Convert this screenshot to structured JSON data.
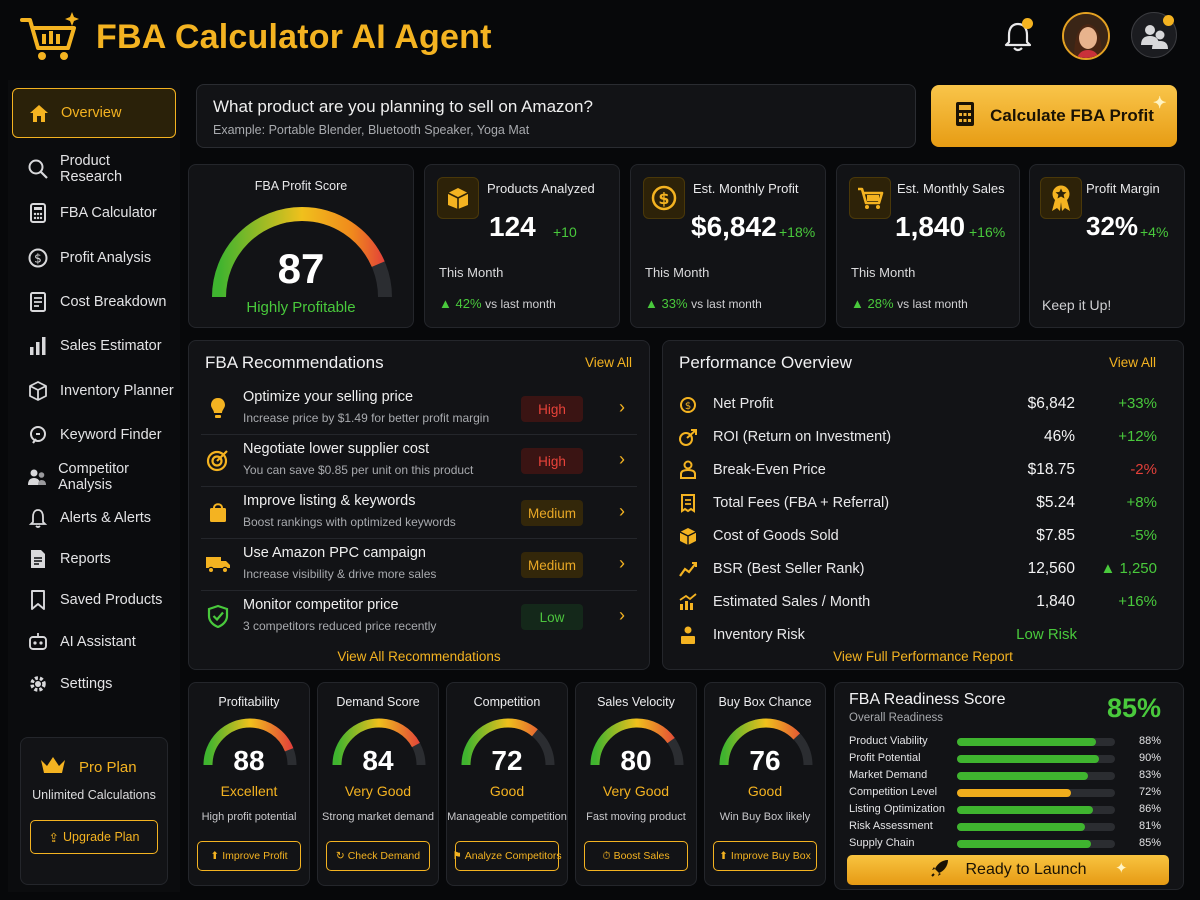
{
  "app": {
    "title": "FBA Calculator AI Agent"
  },
  "sidebar": {
    "items": [
      {
        "label": "Overview",
        "icon": "home-icon",
        "active": true
      },
      {
        "label": "Product Research",
        "icon": "search-icon"
      },
      {
        "label": "FBA Calculator",
        "icon": "calculator-icon"
      },
      {
        "label": "Profit Analysis",
        "icon": "dollar-circle-icon"
      },
      {
        "label": "Cost Breakdown",
        "icon": "document-list-icon"
      },
      {
        "label": "Sales Estimator",
        "icon": "bar-chart-icon"
      },
      {
        "label": "Inventory Planner",
        "icon": "box-icon"
      },
      {
        "label": "Keyword Finder",
        "icon": "magnifier-icon"
      },
      {
        "label": "Competitor Analysis",
        "icon": "users-icon"
      },
      {
        "label": "Alerts & Alerts",
        "icon": "bell-icon"
      },
      {
        "label": "Reports",
        "icon": "report-icon"
      },
      {
        "label": "Saved Products",
        "icon": "bookmark-icon"
      },
      {
        "label": "AI Assistant",
        "icon": "robot-icon"
      },
      {
        "label": "Settings",
        "icon": "gear-icon"
      }
    ],
    "plan": {
      "name": "Pro Plan",
      "desc": "Unlimited Calculations",
      "button": "Upgrade Plan"
    }
  },
  "search": {
    "question": "What product are you planning to sell on Amazon?",
    "example": "Example: Portable Blender, Bluetooth Speaker, Yoga Mat"
  },
  "cta": {
    "label": "Calculate FBA Profit"
  },
  "profit_score": {
    "title": "FBA Profit Score",
    "value": "87",
    "score": 87,
    "max": 100,
    "label": "Highly Profitable"
  },
  "stats": [
    {
      "title": "Products Analyzed",
      "value": "124",
      "delta": "+10",
      "sub": "This Month",
      "trend": "42%",
      "trend_text": "vs last month"
    },
    {
      "title": "Est. Monthly Profit",
      "value": "$6,842",
      "delta": "+18%",
      "sub": "This Month",
      "trend": "33%",
      "trend_text": "vs last month"
    },
    {
      "title": "Est. Monthly Sales",
      "value": "1,840",
      "delta": "+16%",
      "sub": "This Month",
      "trend": "28%",
      "trend_text": "vs last month"
    },
    {
      "title": "Profit Margin",
      "value": "32%",
      "delta": "+4%",
      "foot": "Keep it Up!"
    }
  ],
  "recommendations": {
    "title": "FBA Recommendations",
    "view_all": "View All",
    "footer": "View All Recommendations",
    "items": [
      {
        "title": "Optimize your selling price",
        "sub": "Increase price by $1.49 for better profit margin",
        "priority": "High"
      },
      {
        "title": "Negotiate lower supplier cost",
        "sub": "You can save $0.85 per unit on this product",
        "priority": "High"
      },
      {
        "title": "Improve listing & keywords",
        "sub": "Boost rankings with optimized keywords",
        "priority": "Medium"
      },
      {
        "title": "Use Amazon PPC campaign",
        "sub": "Increase visibility & drive more sales",
        "priority": "Medium"
      },
      {
        "title": "Monitor competitor price",
        "sub": "3 competitors reduced price recently",
        "priority": "Low"
      }
    ]
  },
  "performance": {
    "title": "Performance Overview",
    "view_all": "View All",
    "footer": "View Full Performance Report",
    "rows": [
      {
        "label": "Net Profit",
        "value": "$6,842",
        "change": "+33%"
      },
      {
        "label": "ROI (Return on Investment)",
        "value": "46%",
        "change": "+12%"
      },
      {
        "label": "Break-Even Price",
        "value": "$18.75",
        "change": "-2%"
      },
      {
        "label": "Total Fees (FBA + Referral)",
        "value": "$5.24",
        "change": "+8%"
      },
      {
        "label": "Cost of Goods Sold",
        "value": "$7.85",
        "change": "-5%"
      },
      {
        "label": "BSR (Best Seller Rank)",
        "value": "12,560",
        "change": "▲ 1,250"
      },
      {
        "label": "Estimated Sales / Month",
        "value": "1,840",
        "change": "+16%"
      },
      {
        "label": "Inventory Risk",
        "value": "",
        "change": "Low Risk"
      }
    ]
  },
  "scores": [
    {
      "title": "Profitability",
      "value": "88",
      "score": 88,
      "rating": "Excellent",
      "desc": "High profit potential",
      "button": "Improve Profit"
    },
    {
      "title": "Demand Score",
      "value": "84",
      "score": 84,
      "rating": "Very Good",
      "desc": "Strong market demand",
      "button": "Check Demand"
    },
    {
      "title": "Competition",
      "value": "72",
      "score": 72,
      "rating": "Good",
      "desc": "Manageable competition",
      "button": "Analyze Competitors"
    },
    {
      "title": "Sales Velocity",
      "value": "80",
      "score": 80,
      "rating": "Very Good",
      "desc": "Fast moving product",
      "button": "Boost Sales"
    },
    {
      "title": "Buy Box Chance",
      "value": "76",
      "score": 76,
      "rating": "Good",
      "desc": "Win Buy Box likely",
      "button": "Improve Buy Box"
    }
  ],
  "readiness": {
    "title": "FBA Readiness Score",
    "subtitle": "Overall Readiness",
    "value": "85%",
    "rows": [
      {
        "label": "Product Viability",
        "pct": "88%",
        "frac": 0.88
      },
      {
        "label": "Profit Potential",
        "pct": "90%",
        "frac": 0.9
      },
      {
        "label": "Market Demand",
        "pct": "83%",
        "frac": 0.83
      },
      {
        "label": "Competition Level",
        "pct": "72%",
        "frac": 0.72
      },
      {
        "label": "Listing Optimization",
        "pct": "86%",
        "frac": 0.86
      },
      {
        "label": "Risk Assessment",
        "pct": "81%",
        "frac": 0.81
      },
      {
        "label": "Supply Chain",
        "pct": "85%",
        "frac": 0.85
      }
    ],
    "button": "Ready to Launch"
  },
  "colors": {
    "accent": "#f4b321",
    "positive": "#49c93c",
    "negative": "#e2403a",
    "background": "#07080a",
    "card": "#121316"
  }
}
